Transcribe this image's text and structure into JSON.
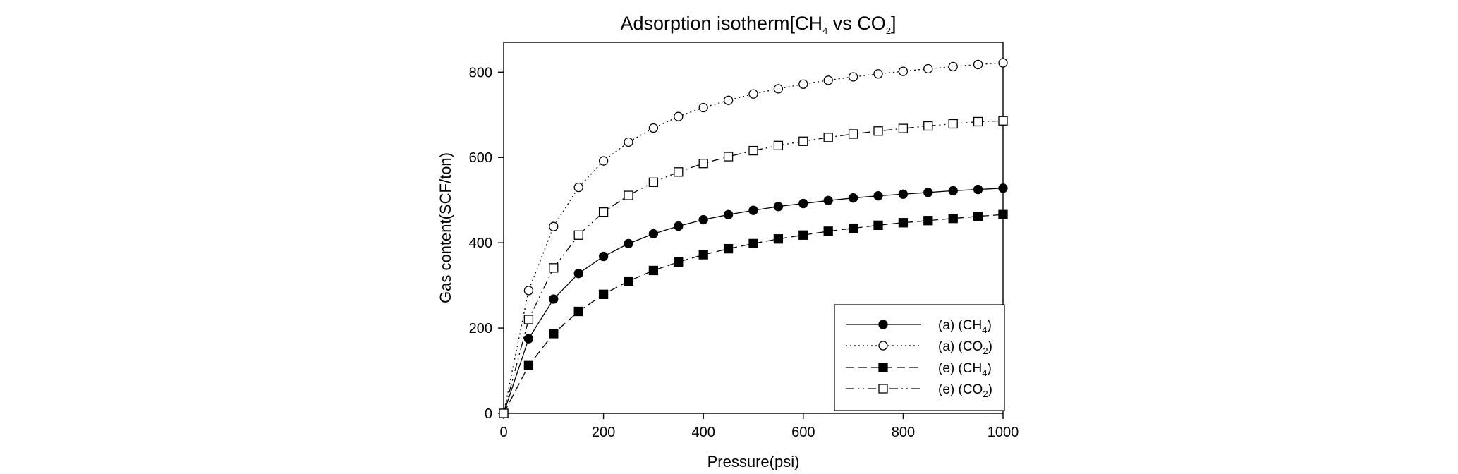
{
  "chart_data": {
    "type": "line",
    "title": {
      "main": "Adsorption isotherm[CH",
      "sub1": "4",
      "mid": " vs CO",
      "sub2": "2",
      "end": "]"
    },
    "xlabel": "Pressure(psi)",
    "ylabel": "Gas content(SCF/ton)",
    "xlim": [
      0,
      1000
    ],
    "ylim": [
      0,
      870
    ],
    "xticks": [
      0,
      200,
      400,
      600,
      800,
      1000
    ],
    "yticks": [
      0,
      200,
      400,
      600,
      800
    ],
    "grid": false,
    "legend_position": "bottom-right",
    "x": [
      0,
      50,
      100,
      150,
      200,
      250,
      300,
      350,
      400,
      450,
      500,
      550,
      600,
      650,
      700,
      750,
      800,
      850,
      900,
      950,
      1000
    ],
    "series": [
      {
        "name": "(a) (CH4)",
        "label_main": "(a) (CH",
        "label_sub": "4",
        "label_end": ")",
        "marker": "circle",
        "filled": true,
        "dash": "solid",
        "values": [
          0,
          175,
          268,
          328,
          368,
          398,
          421,
          439,
          454,
          466,
          476,
          485,
          492,
          499,
          505,
          510,
          514,
          518,
          522,
          525,
          528
        ]
      },
      {
        "name": "(a) (CO2)",
        "label_main": "(a) (CO",
        "label_sub": "2",
        "label_end": ")",
        "marker": "circle",
        "filled": false,
        "dash": "dotted",
        "values": [
          0,
          288,
          438,
          530,
          592,
          636,
          669,
          696,
          717,
          734,
          749,
          761,
          772,
          781,
          789,
          796,
          802,
          808,
          813,
          818,
          822
        ]
      },
      {
        "name": "(e) (CH4)",
        "label_main": "(e) (CH",
        "label_sub": "4",
        "label_end": ")",
        "marker": "square",
        "filled": true,
        "dash": "dashed",
        "values": [
          0,
          112,
          187,
          239,
          279,
          310,
          335,
          355,
          372,
          386,
          398,
          409,
          418,
          427,
          434,
          441,
          447,
          452,
          457,
          462,
          466
        ]
      },
      {
        "name": "(e) (CO2)",
        "label_main": "(e) (CO",
        "label_sub": "2",
        "label_end": ")",
        "marker": "square",
        "filled": false,
        "dash": "dashdotdot",
        "values": [
          0,
          220,
          341,
          418,
          472,
          511,
          542,
          566,
          586,
          602,
          616,
          628,
          638,
          647,
          655,
          662,
          668,
          674,
          679,
          684,
          686
        ]
      }
    ]
  }
}
